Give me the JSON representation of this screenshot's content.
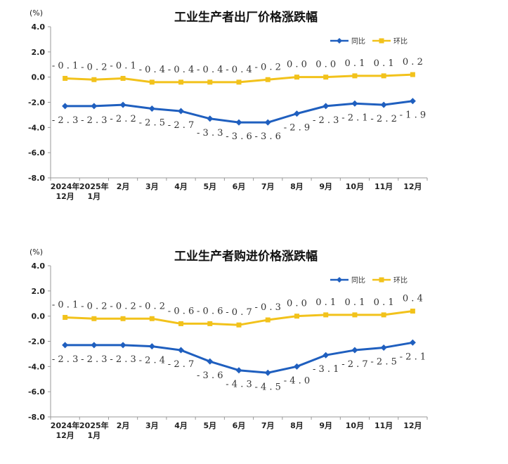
{
  "chart_data": [
    {
      "type": "line",
      "title": "工业生产者出厂价格涨跌幅",
      "unit": "(%)",
      "categories": [
        [
          "2024年",
          "12月"
        ],
        [
          "2025年",
          "1月"
        ],
        [
          "2月"
        ],
        [
          "3月"
        ],
        [
          "4月"
        ],
        [
          "5月"
        ],
        [
          "6月"
        ],
        [
          "7月"
        ],
        [
          "8月"
        ],
        [
          "9月"
        ],
        [
          "10月"
        ],
        [
          "11月"
        ],
        [
          "12月"
        ]
      ],
      "ylim": [
        -8.0,
        4.0
      ],
      "yticks": [
        "4.0",
        "2.0",
        "0.0",
        "-2.0",
        "-4.0",
        "-6.0",
        "-8.0"
      ],
      "legend": "top-right",
      "series": [
        {
          "name": "同比",
          "color": "#1f5fbf",
          "marker": "diamond",
          "values": [
            -2.3,
            -2.3,
            -2.2,
            -2.5,
            -2.7,
            -3.3,
            -3.6,
            -3.6,
            -2.9,
            -2.3,
            -2.1,
            -2.2,
            -1.9
          ],
          "labels": [
            "-2.3",
            "-2.3",
            "-2.2",
            "-2.5",
            "-2.7",
            "-3.3",
            "-3.6",
            "-3.6",
            "-2.9",
            "-2.3",
            "-2.1",
            "-2.2",
            "-1.9"
          ]
        },
        {
          "name": "环比",
          "color": "#f2c21b",
          "marker": "square",
          "values": [
            -0.1,
            -0.2,
            -0.1,
            -0.4,
            -0.4,
            -0.4,
            -0.4,
            -0.2,
            0.0,
            0.0,
            0.1,
            0.1,
            0.2
          ],
          "labels": [
            "-0.1",
            "-0.2",
            "-0.1",
            "-0.4",
            "-0.4",
            "-0.4",
            "-0.4",
            "-0.2",
            "0.0",
            "0.0",
            "0.1",
            "0.1",
            "0.2"
          ]
        }
      ]
    },
    {
      "type": "line",
      "title": "工业生产者购进价格涨跌幅",
      "unit": "(%)",
      "categories": [
        [
          "2024年",
          "12月"
        ],
        [
          "2025年",
          "1月"
        ],
        [
          "2月"
        ],
        [
          "3月"
        ],
        [
          "4月"
        ],
        [
          "5月"
        ],
        [
          "6月"
        ],
        [
          "7月"
        ],
        [
          "8月"
        ],
        [
          "9月"
        ],
        [
          "10月"
        ],
        [
          "11月"
        ],
        [
          "12月"
        ]
      ],
      "ylim": [
        -8.0,
        4.0
      ],
      "yticks": [
        "4.0",
        "2.0",
        "0.0",
        "-2.0",
        "-4.0",
        "-6.0",
        "-8.0"
      ],
      "legend": "top-right",
      "series": [
        {
          "name": "同比",
          "color": "#1f5fbf",
          "marker": "diamond",
          "values": [
            -2.3,
            -2.3,
            -2.3,
            -2.4,
            -2.7,
            -3.6,
            -4.3,
            -4.5,
            -4.0,
            -3.1,
            -2.7,
            -2.5,
            -2.1
          ],
          "labels": [
            "-2.3",
            "-2.3",
            "-2.3",
            "-2.4",
            "-2.7",
            "-3.6",
            "-4.3",
            "-4.5",
            "-4.0",
            "-3.1",
            "-2.7",
            "-2.5",
            "-2.1"
          ]
        },
        {
          "name": "环比",
          "color": "#f2c21b",
          "marker": "square",
          "values": [
            -0.1,
            -0.2,
            -0.2,
            -0.2,
            -0.6,
            -0.6,
            -0.7,
            -0.3,
            0.0,
            0.1,
            0.1,
            0.1,
            0.4
          ],
          "labels": [
            "-0.1",
            "-0.2",
            "-0.2",
            "-0.2",
            "-0.6",
            "-0.6",
            "-0.7",
            "-0.3",
            "0.0",
            "0.1",
            "0.1",
            "0.1",
            "0.4"
          ]
        }
      ]
    }
  ]
}
